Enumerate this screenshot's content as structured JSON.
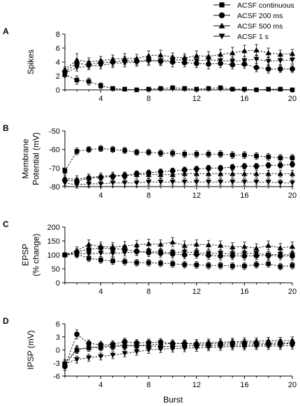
{
  "legend": {
    "position": "top-right",
    "entries": [
      {
        "name": "ACSF continuous",
        "marker": "square"
      },
      {
        "name": "ACSF 200 ms",
        "marker": "circle"
      },
      {
        "name": "ACSF 500 ms",
        "marker": "triangle-up"
      },
      {
        "name": "ACSF 1 s",
        "marker": "triangle-down"
      }
    ]
  },
  "xlabel": "Burst",
  "chart_data": [
    {
      "panel": "A",
      "type": "line",
      "ylabel": [
        "Spikes"
      ],
      "ylim": [
        0,
        8
      ],
      "yticks": [
        0,
        2,
        4,
        6,
        8
      ],
      "xlim": [
        1,
        20
      ],
      "xticks": [
        4,
        8,
        12,
        16,
        20
      ],
      "x": [
        1,
        2,
        3,
        4,
        5,
        6,
        7,
        8,
        9,
        10,
        11,
        12,
        13,
        14,
        15,
        16,
        17,
        18,
        19,
        20
      ],
      "series": [
        {
          "name": "ACSF continuous",
          "marker": "square",
          "values": [
            2.2,
            1.4,
            1.2,
            0.6,
            0.2,
            0.1,
            0.0,
            0.1,
            0.2,
            0.3,
            0.2,
            0.1,
            0.2,
            0.3,
            0.1,
            0.1,
            0.0,
            0.1,
            0.1,
            0.0
          ],
          "err": [
            0.4,
            0.6,
            0.5,
            0.4,
            0.2,
            0.1,
            0.1,
            0.1,
            0.1,
            0.2,
            0.2,
            0.1,
            0.2,
            0.2,
            0.1,
            0.1,
            0.1,
            0.1,
            0.1,
            0.1
          ]
        },
        {
          "name": "ACSF 200 ms",
          "marker": "circle",
          "values": [
            2.6,
            3.8,
            3.6,
            3.9,
            4.0,
            4.2,
            4.1,
            4.3,
            4.1,
            4.0,
            3.9,
            3.8,
            3.7,
            3.8,
            3.6,
            3.7,
            3.2,
            3.0,
            3.0,
            3.0
          ],
          "err": [
            0.5,
            0.6,
            0.5,
            0.5,
            0.6,
            0.6,
            0.5,
            0.6,
            0.6,
            0.7,
            0.6,
            0.6,
            0.7,
            0.6,
            0.6,
            0.6,
            0.6,
            0.6,
            0.5,
            0.5
          ]
        },
        {
          "name": "ACSF 500 ms",
          "marker": "triangle-up",
          "values": [
            2.9,
            4.3,
            4.0,
            4.2,
            4.4,
            4.5,
            4.5,
            4.9,
            5.0,
            4.7,
            4.6,
            4.9,
            4.8,
            5.1,
            5.3,
            5.6,
            5.7,
            5.3,
            5.1,
            5.2
          ],
          "err": [
            0.4,
            0.9,
            0.6,
            0.6,
            0.6,
            0.7,
            0.6,
            0.7,
            0.7,
            0.6,
            0.6,
            0.7,
            0.7,
            0.7,
            0.8,
            0.8,
            0.8,
            0.7,
            0.6,
            0.6
          ]
        },
        {
          "name": "ACSF 1 s",
          "marker": "triangle-down",
          "values": [
            2.4,
            3.2,
            3.4,
            3.5,
            3.8,
            3.9,
            4.0,
            4.1,
            4.2,
            4.3,
            4.3,
            4.2,
            4.3,
            4.2,
            4.1,
            4.2,
            4.4,
            4.1,
            4.2,
            4.3
          ],
          "err": [
            0.4,
            0.5,
            0.5,
            0.5,
            0.6,
            0.6,
            0.6,
            0.6,
            0.6,
            0.6,
            0.6,
            0.6,
            0.6,
            0.6,
            0.6,
            0.6,
            0.6,
            0.6,
            0.6,
            0.6
          ]
        }
      ]
    },
    {
      "panel": "B",
      "type": "line",
      "ylabel": [
        "Membrane",
        "Potential (mV)"
      ],
      "ylim": [
        -80,
        -50
      ],
      "yticks": [
        -80,
        -70,
        -60,
        -50
      ],
      "xlim": [
        1,
        20
      ],
      "xticks": [
        4,
        8,
        12,
        16,
        20
      ],
      "x": [
        1,
        2,
        3,
        4,
        5,
        6,
        7,
        8,
        9,
        10,
        11,
        12,
        13,
        14,
        15,
        16,
        17,
        18,
        19,
        20
      ],
      "series": [
        {
          "name": "ACSF continuous",
          "marker": "square",
          "values": [
            -71.5,
            -61.0,
            -60.0,
            -59.5,
            -60.0,
            -60.5,
            -61.5,
            -61.5,
            -62.0,
            -62.0,
            -62.5,
            -62.5,
            -62.5,
            -62.5,
            -63.0,
            -63.0,
            -63.5,
            -64.0,
            -64.5,
            -64.5
          ],
          "err": [
            1.5,
            1.8,
            1.6,
            1.6,
            1.6,
            1.6,
            1.6,
            1.6,
            1.8,
            1.8,
            1.8,
            1.8,
            1.8,
            1.8,
            1.8,
            1.8,
            1.8,
            1.8,
            1.8,
            1.8
          ]
        },
        {
          "name": "ACSF 200 ms",
          "marker": "circle",
          "values": [
            -76.5,
            -77.0,
            -75.5,
            -75.0,
            -74.5,
            -74.0,
            -73.0,
            -72.5,
            -72.0,
            -71.5,
            -71.0,
            -70.5,
            -70.0,
            -70.0,
            -69.5,
            -69.0,
            -69.0,
            -68.5,
            -68.5,
            -68.0
          ],
          "err": [
            1.5,
            1.5,
            1.5,
            1.5,
            1.5,
            1.5,
            1.5,
            1.5,
            1.5,
            1.5,
            1.5,
            1.5,
            1.5,
            1.5,
            1.5,
            1.5,
            1.5,
            1.5,
            1.5,
            1.5
          ]
        },
        {
          "name": "ACSF 500 ms",
          "marker": "triangle-up",
          "values": [
            -75.5,
            -76.0,
            -75.0,
            -74.5,
            -74.0,
            -74.0,
            -73.5,
            -73.5,
            -73.5,
            -73.5,
            -73.0,
            -73.0,
            -73.0,
            -73.0,
            -73.0,
            -73.0,
            -73.0,
            -73.0,
            -73.0,
            -73.0
          ],
          "err": [
            1.5,
            1.8,
            1.8,
            1.8,
            1.8,
            1.8,
            1.8,
            1.8,
            1.8,
            1.8,
            1.8,
            1.8,
            1.8,
            1.8,
            1.8,
            1.8,
            1.8,
            1.8,
            1.8,
            1.8
          ]
        },
        {
          "name": "ACSF 1 s",
          "marker": "triangle-down",
          "values": [
            -78.0,
            -79.0,
            -78.5,
            -78.5,
            -78.0,
            -78.0,
            -78.0,
            -77.5,
            -77.5,
            -77.5,
            -77.5,
            -77.5,
            -77.5,
            -77.5,
            -77.5,
            -77.5,
            -77.5,
            -77.5,
            -78.0,
            -78.0
          ],
          "err": [
            1.5,
            1.8,
            1.8,
            1.8,
            1.8,
            1.8,
            1.8,
            1.8,
            1.8,
            1.8,
            1.8,
            1.8,
            1.8,
            1.8,
            1.8,
            1.8,
            1.8,
            1.8,
            1.8,
            1.8
          ]
        }
      ]
    },
    {
      "panel": "C",
      "type": "line",
      "ylabel": [
        "EPSP",
        "(% change)"
      ],
      "ylim": [
        0,
        200
      ],
      "yticks": [
        0,
        50,
        100,
        150,
        200
      ],
      "xlim": [
        1,
        20
      ],
      "xticks": [
        4,
        8,
        12,
        16,
        20
      ],
      "x": [
        1,
        2,
        3,
        4,
        5,
        6,
        7,
        8,
        9,
        10,
        11,
        12,
        13,
        14,
        15,
        16,
        17,
        18,
        19,
        20
      ],
      "series": [
        {
          "name": "ACSF continuous",
          "marker": "square",
          "values": [
            100,
            102,
            88,
            82,
            78,
            76,
            72,
            72,
            70,
            68,
            65,
            64,
            62,
            62,
            60,
            60,
            65,
            68,
            58,
            62
          ],
          "err": [
            6,
            12,
            12,
            12,
            12,
            12,
            12,
            12,
            12,
            12,
            12,
            12,
            12,
            12,
            12,
            12,
            12,
            12,
            12,
            12
          ]
        },
        {
          "name": "ACSF 200 ms",
          "marker": "circle",
          "values": [
            100,
            110,
            120,
            125,
            122,
            120,
            112,
            108,
            106,
            103,
            100,
            102,
            98,
            96,
            97,
            96,
            97,
            98,
            96,
            96
          ],
          "err": [
            6,
            12,
            14,
            14,
            14,
            14,
            14,
            14,
            14,
            14,
            14,
            14,
            14,
            14,
            14,
            14,
            14,
            14,
            14,
            14
          ]
        },
        {
          "name": "ACSF 500 ms",
          "marker": "triangle-up",
          "values": [
            100,
            115,
            138,
            130,
            128,
            132,
            136,
            140,
            138,
            146,
            134,
            138,
            136,
            134,
            128,
            130,
            124,
            134,
            125,
            130
          ],
          "err": [
            6,
            14,
            16,
            16,
            16,
            16,
            16,
            16,
            16,
            16,
            16,
            16,
            16,
            16,
            16,
            16,
            16,
            16,
            16,
            16
          ]
        },
        {
          "name": "ACSF 1 s",
          "marker": "triangle-down",
          "values": [
            100,
            105,
            104,
            106,
            105,
            108,
            110,
            112,
            110,
            108,
            110,
            108,
            105,
            106,
            104,
            105,
            106,
            100,
            102,
            100
          ],
          "err": [
            6,
            12,
            12,
            12,
            12,
            12,
            12,
            12,
            12,
            12,
            12,
            12,
            12,
            12,
            12,
            12,
            12,
            12,
            12,
            12
          ]
        }
      ]
    },
    {
      "panel": "D",
      "type": "line",
      "ylabel": [
        "IPSP (mV)"
      ],
      "ylim": [
        -6,
        6
      ],
      "yticks": [
        -6,
        -3,
        0,
        3,
        6
      ],
      "xlim": [
        1,
        20
      ],
      "xticks": [
        4,
        8,
        12,
        16,
        20
      ],
      "x": [
        1,
        2,
        3,
        4,
        5,
        6,
        7,
        8,
        9,
        10,
        11,
        12,
        13,
        14,
        15,
        16,
        17,
        18,
        19,
        20
      ],
      "series": [
        {
          "name": "ACSF continuous",
          "marker": "square",
          "values": [
            -3.5,
            0.0,
            0.5,
            0.8,
            1.0,
            1.1,
            1.0,
            0.9,
            0.8,
            0.8,
            0.9,
            1.0,
            1.0,
            1.1,
            1.2,
            1.1,
            1.2,
            1.3,
            1.3,
            1.5
          ],
          "err": [
            0.8,
            0.8,
            0.8,
            0.8,
            0.8,
            0.8,
            0.8,
            0.8,
            0.8,
            0.8,
            0.8,
            0.8,
            0.8,
            0.8,
            0.8,
            0.8,
            0.8,
            0.8,
            0.8,
            0.8
          ]
        },
        {
          "name": "ACSF 200 ms",
          "marker": "circle",
          "values": [
            -3.8,
            3.6,
            1.5,
            1.2,
            1.3,
            1.9,
            1.6,
            1.7,
            1.8,
            1.5,
            1.5,
            1.3,
            1.4,
            1.5,
            1.6,
            1.6,
            1.6,
            1.5,
            1.6,
            1.6
          ],
          "err": [
            0.9,
            1.0,
            0.8,
            0.8,
            0.8,
            0.8,
            0.8,
            0.8,
            0.8,
            0.8,
            0.8,
            0.8,
            0.8,
            0.8,
            0.8,
            0.8,
            0.8,
            0.8,
            0.8,
            0.8
          ]
        },
        {
          "name": "ACSF 500 ms",
          "marker": "triangle-up",
          "values": [
            -3.0,
            0.2,
            0.5,
            0.6,
            0.8,
            0.9,
            1.0,
            1.2,
            1.3,
            1.5,
            1.4,
            1.6,
            1.7,
            1.8,
            1.9,
            2.0,
            2.0,
            2.1,
            2.1,
            2.2
          ],
          "err": [
            0.8,
            0.8,
            0.8,
            0.8,
            0.8,
            0.8,
            0.8,
            0.8,
            0.8,
            0.8,
            0.8,
            0.8,
            0.8,
            0.8,
            0.8,
            0.8,
            0.8,
            0.8,
            0.8,
            0.8
          ]
        },
        {
          "name": "ACSF 1 s",
          "marker": "triangle-down",
          "values": [
            -3.2,
            -2.2,
            -1.8,
            -1.5,
            -1.2,
            -0.8,
            -0.4,
            0.0,
            0.2,
            0.3,
            0.4,
            0.5,
            0.6,
            0.7,
            0.8,
            0.8,
            0.9,
            0.9,
            0.9,
            1.0
          ],
          "err": [
            0.8,
            0.8,
            0.8,
            0.8,
            0.8,
            0.8,
            0.8,
            0.8,
            0.8,
            0.8,
            0.8,
            0.8,
            0.8,
            0.8,
            0.8,
            0.8,
            0.8,
            0.8,
            0.8,
            0.8
          ]
        }
      ]
    }
  ]
}
